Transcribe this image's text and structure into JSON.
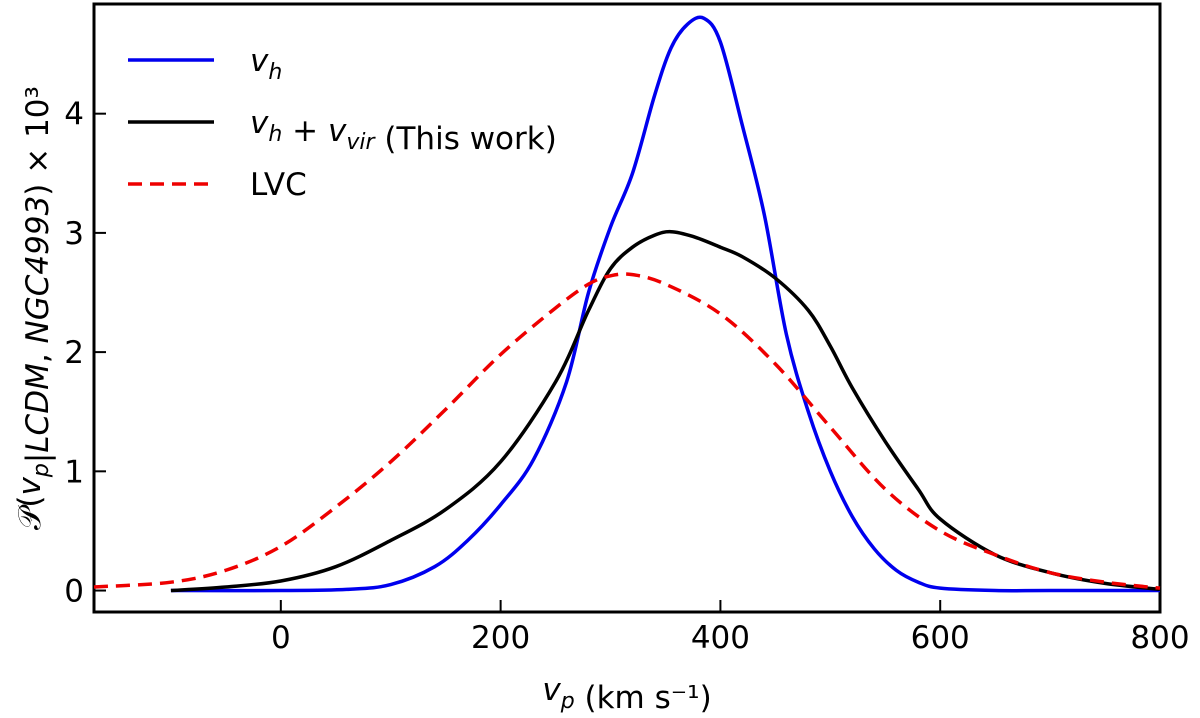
{
  "chart_data": {
    "type": "line",
    "xlabel": "v_p (km s⁻¹)",
    "ylabel": "𝒫(v_p|LCDM, NGC4993) × 10³",
    "xlim": [
      -170,
      800
    ],
    "ylim": [
      -0.18,
      4.92
    ],
    "xticks": [
      0,
      200,
      400,
      600,
      800
    ],
    "yticks": [
      0,
      1,
      2,
      3,
      4
    ],
    "grid": false,
    "legend_position": "top-left",
    "series": [
      {
        "name": "v_h",
        "color": "#0000ee",
        "dash": "solid",
        "x": [
          -100,
          0,
          60,
          100,
          140,
          170,
          200,
          230,
          260,
          280,
          300,
          320,
          340,
          355,
          370,
          385,
          400,
          420,
          440,
          460,
          480,
          500,
          520,
          540,
          560,
          580,
          600,
          650,
          700,
          800
        ],
        "y": [
          0,
          0,
          0.01,
          0.05,
          0.2,
          0.42,
          0.72,
          1.1,
          1.75,
          2.5,
          3.05,
          3.5,
          4.15,
          4.55,
          4.75,
          4.8,
          4.6,
          3.9,
          3.15,
          2.15,
          1.5,
          1.0,
          0.62,
          0.35,
          0.17,
          0.07,
          0.02,
          0,
          0,
          0
        ]
      },
      {
        "name": "v_h + v_vir (This work)",
        "color": "#000000",
        "dash": "solid",
        "x": [
          -100,
          -50,
          0,
          50,
          100,
          150,
          200,
          250,
          280,
          300,
          320,
          340,
          355,
          375,
          400,
          420,
          450,
          480,
          500,
          520,
          550,
          580,
          600,
          650,
          700,
          750,
          800
        ],
        "y": [
          0,
          0.03,
          0.08,
          0.2,
          0.42,
          0.68,
          1.08,
          1.75,
          2.35,
          2.7,
          2.88,
          2.98,
          3.01,
          2.97,
          2.88,
          2.8,
          2.62,
          2.35,
          2.05,
          1.7,
          1.25,
          0.85,
          0.6,
          0.3,
          0.15,
          0.06,
          0.01
        ]
      },
      {
        "name": "LVC",
        "color": "#ee0000",
        "dash": "dashed",
        "x": [
          -170,
          -100,
          -50,
          0,
          50,
          100,
          150,
          200,
          250,
          280,
          300,
          320,
          350,
          400,
          450,
          500,
          550,
          600,
          650,
          700,
          750,
          800
        ],
        "y": [
          0.03,
          0.07,
          0.17,
          0.37,
          0.7,
          1.08,
          1.52,
          1.98,
          2.37,
          2.57,
          2.64,
          2.65,
          2.57,
          2.32,
          1.9,
          1.37,
          0.85,
          0.5,
          0.3,
          0.15,
          0.07,
          0.02
        ]
      }
    ]
  }
}
